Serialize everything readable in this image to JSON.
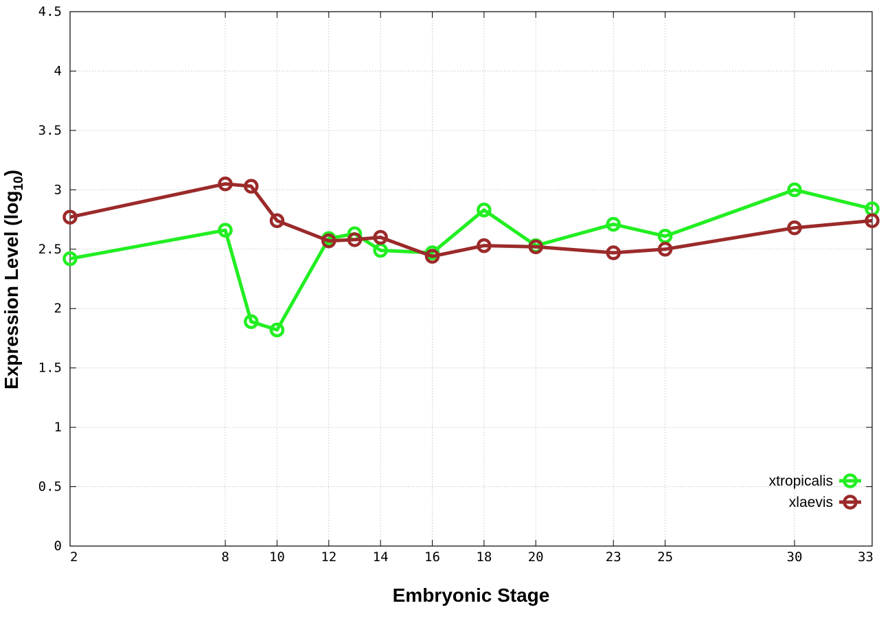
{
  "chart_data": {
    "type": "line",
    "title": "",
    "xlabel": "Embryonic Stage",
    "ylabel_main": "Expression Level (log",
    "ylabel_sub": "10",
    "ylabel_close": ")",
    "xlim": [
      2,
      33
    ],
    "ylim": [
      0,
      4.5
    ],
    "x_ticks": [
      2,
      8,
      10,
      12,
      14,
      16,
      18,
      20,
      23,
      25,
      30,
      33
    ],
    "x_tick_labels": [
      "2",
      "8",
      "10",
      "12",
      "14",
      "16",
      "18",
      "20",
      "23",
      "25",
      "30",
      "33"
    ],
    "y_ticks": [
      0,
      0.5,
      1,
      1.5,
      2,
      2.5,
      3,
      3.5,
      4,
      4.5
    ],
    "y_tick_labels": [
      "0",
      "0.5",
      "1",
      "1.5",
      "2",
      "2.5",
      "3",
      "3.5",
      "4",
      "4.5"
    ],
    "grid": true,
    "legend_position": "bottom-right",
    "series": [
      {
        "name": "xtropicalis",
        "color": "#22ee22",
        "x": [
          2,
          8,
          9,
          10,
          12,
          13,
          14,
          16,
          18,
          20,
          23,
          25,
          30,
          33
        ],
        "y": [
          2.42,
          2.66,
          1.89,
          1.82,
          2.59,
          2.63,
          2.49,
          2.47,
          2.83,
          2.53,
          2.71,
          2.61,
          3.0,
          2.84
        ]
      },
      {
        "name": "xlaevis",
        "color": "#9b2a2a",
        "x": [
          2,
          8,
          9,
          10,
          12,
          13,
          14,
          16,
          18,
          20,
          23,
          25,
          30,
          33
        ],
        "y": [
          2.77,
          3.05,
          3.03,
          2.74,
          2.57,
          2.58,
          2.6,
          2.44,
          2.53,
          2.52,
          2.47,
          2.5,
          2.68,
          2.74
        ]
      }
    ]
  }
}
